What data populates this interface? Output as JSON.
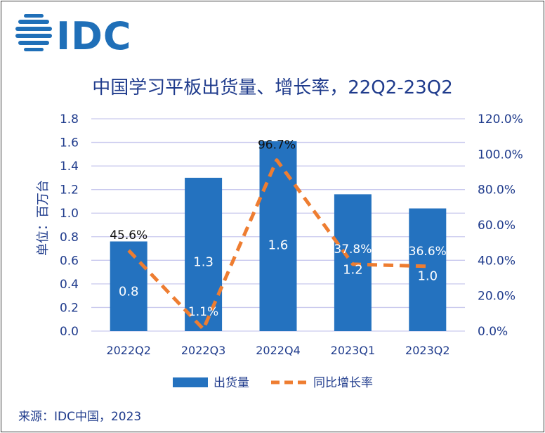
{
  "brand": {
    "name": "IDC",
    "color": "#1f6fb8"
  },
  "title": "中国学习平板出货量、增长率，22Q2-23Q2",
  "ylabel": "单位：百万台",
  "source": "来源：IDC中国，2023",
  "colors": {
    "bar": "#2472bf",
    "line": "#ee7d31",
    "text": "#1f3b8c",
    "grid": "#c9c9ee"
  },
  "chart_data": {
    "type": "bar",
    "categories": [
      "2022Q2",
      "2022Q3",
      "2022Q4",
      "2023Q1",
      "2023Q2"
    ],
    "series": [
      {
        "name": "出货量",
        "type": "bar",
        "axis": "left",
        "values": [
          0.76,
          1.3,
          1.61,
          1.16,
          1.04
        ],
        "labels": [
          "0.8",
          "1.3",
          "1.6",
          "1.2",
          "1.0"
        ]
      },
      {
        "name": "同比增长率",
        "type": "line",
        "axis": "right",
        "style": "dashed",
        "values": [
          45.6,
          1.1,
          96.7,
          37.8,
          36.6
        ],
        "labels": [
          "45.6%",
          "1.1%",
          "96.7%",
          "37.8%",
          "36.6%"
        ]
      }
    ],
    "y_left": {
      "min": 0,
      "max": 1.8,
      "ticks": [
        "0.0",
        "0.2",
        "0.4",
        "0.6",
        "0.8",
        "1.0",
        "1.2",
        "1.4",
        "1.6",
        "1.8"
      ]
    },
    "y_right": {
      "min": 0,
      "max": 120,
      "ticks": [
        "0.0%",
        "20.0%",
        "40.0%",
        "60.0%",
        "80.0%",
        "100.0%",
        "120.0%"
      ]
    },
    "grid": true,
    "legend_position": "bottom"
  }
}
